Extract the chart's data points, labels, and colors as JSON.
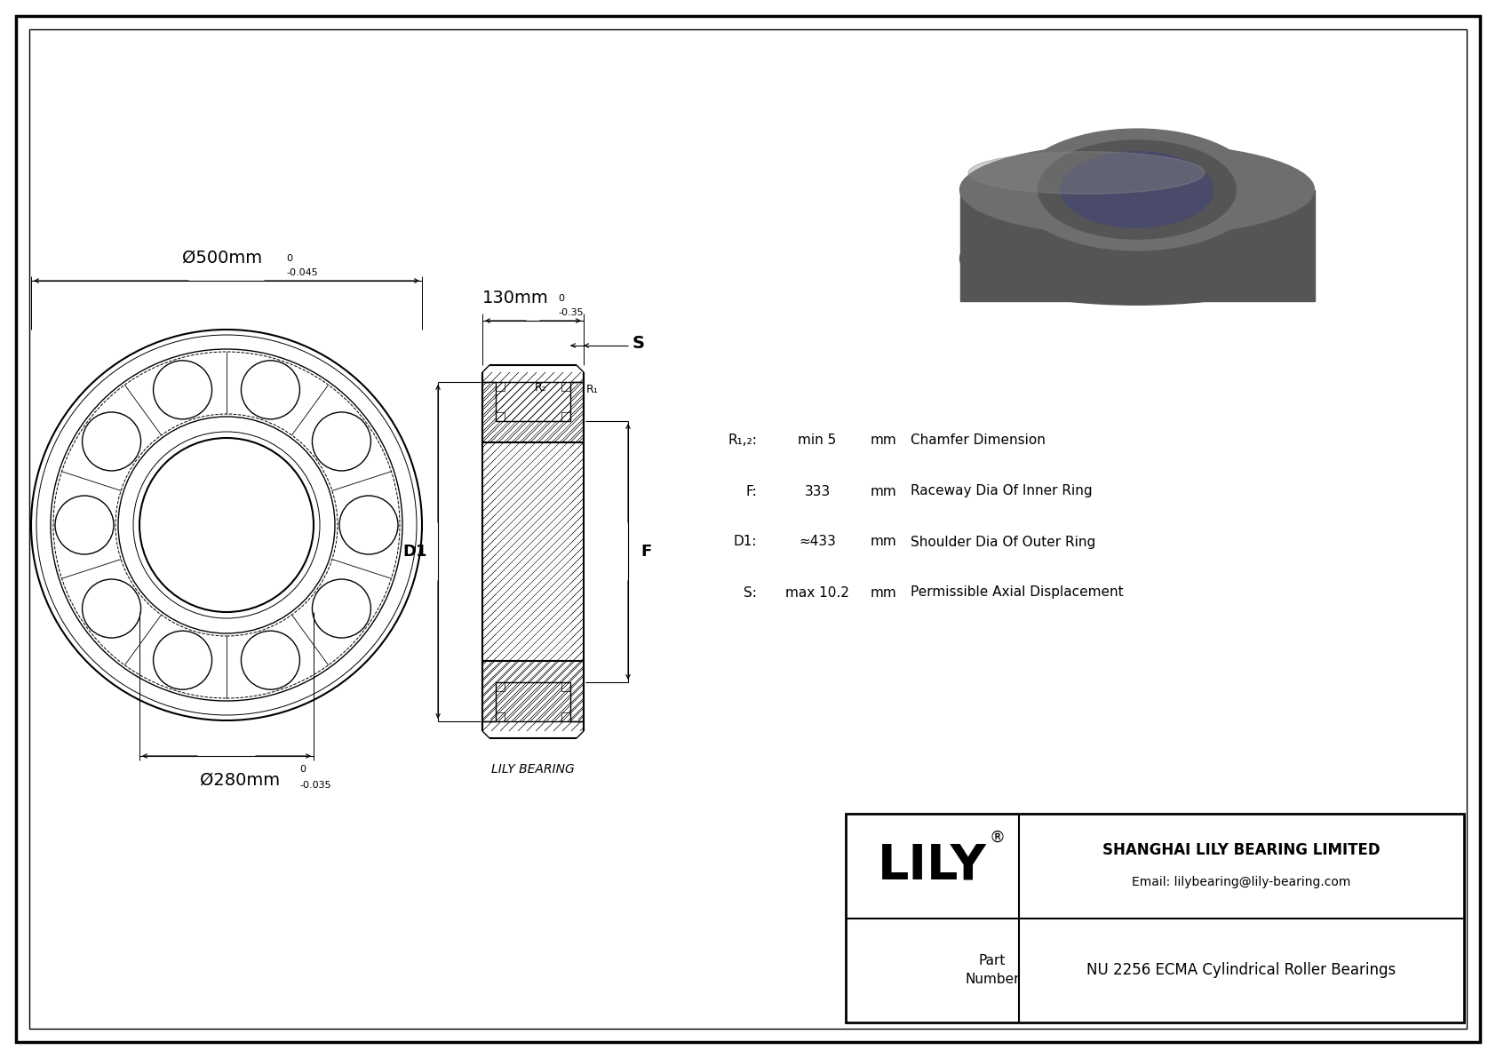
{
  "title": "NU 2256 ECMA Cylindrical Roller Bearings",
  "company": "SHANGHAI LILY BEARING LIMITED",
  "email": "Email: lilybearing@lily-bearing.com",
  "lily_text": "LILY",
  "part_label": "Part\nNumber",
  "outer_dia_label": "Ø500mm",
  "outer_dia_tol": "-0.045",
  "outer_dia_tol_upper": "0",
  "inner_dia_label": "Ø280mm",
  "inner_dia_tol": "-0.035",
  "inner_dia_tol_upper": "0",
  "width_label": "130mm",
  "width_tol": "-0.35",
  "width_tol_upper": "0",
  "D1_label": "D1",
  "F_label": "F",
  "S_label": "S",
  "R1_label": "R₁",
  "R2_label": "R₂",
  "param_R": "R₁,₂:",
  "param_R_val": "min 5",
  "param_R_unit": "mm",
  "param_R_desc": "Chamfer Dimension",
  "param_F": "F:",
  "param_F_val": "333",
  "param_F_unit": "mm",
  "param_F_desc": "Raceway Dia Of Inner Ring",
  "param_D1": "D1:",
  "param_D1_val": "≈433",
  "param_D1_unit": "mm",
  "param_D1_desc": "Shoulder Dia Of Outer Ring",
  "param_S": "S:",
  "param_S_val": "max 10.2",
  "param_S_unit": "mm",
  "param_S_desc": "Permissible Axial Displacement",
  "lily_bearing_label": "LILY BEARING",
  "img_color_outer": "#6e6e6e",
  "img_color_mid": "#555555",
  "img_color_dark": "#3a3a4a",
  "img_color_inner": "#4a4a6a"
}
